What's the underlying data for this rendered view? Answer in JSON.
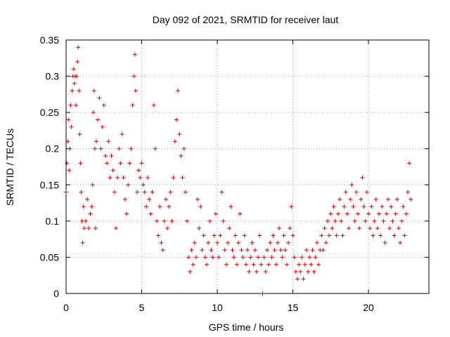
{
  "chart_data": {
    "type": "scatter",
    "title": "Day 092 of 2021, SRMTID for receiver laut",
    "xlabel": "GPS time / hours",
    "ylabel": "SRMTID / TECUs",
    "xlim": [
      0,
      24
    ],
    "ylim": [
      0,
      0.35
    ],
    "x_ticks": [
      0,
      5,
      10,
      15,
      20
    ],
    "y_ticks": [
      0,
      0.05,
      0.1,
      0.15,
      0.2,
      0.25,
      0.3,
      0.35
    ],
    "x_tick_labels": [
      "0",
      "5",
      "10",
      "15",
      "20"
    ],
    "y_tick_labels": [
      "0",
      "0.05",
      "0.1",
      "0.15",
      "0.2",
      "0.25",
      "0.3",
      "0.35"
    ],
    "grid": true,
    "marker": "+",
    "marker_color": "#e00000",
    "series": [
      {
        "points": [
          [
            0.0,
            0.14
          ],
          [
            0.05,
            0.18
          ],
          [
            0.1,
            0.21
          ],
          [
            0.15,
            0.24
          ],
          [
            0.2,
            0.17
          ],
          [
            0.25,
            0.2
          ],
          [
            0.3,
            0.26
          ],
          [
            0.35,
            0.23
          ],
          [
            0.4,
            0.28
          ],
          [
            0.45,
            0.3
          ],
          [
            0.5,
            0.31
          ],
          [
            0.55,
            0.29
          ],
          [
            0.6,
            0.3
          ],
          [
            0.65,
            0.26
          ],
          [
            0.7,
            0.3
          ],
          [
            0.75,
            0.32
          ],
          [
            0.8,
            0.34
          ],
          [
            0.85,
            0.28
          ],
          [
            0.9,
            0.22
          ],
          [
            0.95,
            0.18
          ],
          [
            1.0,
            0.14
          ],
          [
            1.05,
            0.1
          ],
          [
            1.1,
            0.07
          ],
          [
            1.15,
            0.12
          ],
          [
            1.2,
            0.09
          ],
          [
            1.3,
            0.1
          ],
          [
            1.4,
            0.13
          ],
          [
            1.5,
            0.09
          ],
          [
            1.6,
            0.11
          ],
          [
            1.7,
            0.12
          ],
          [
            1.75,
            0.15
          ],
          [
            1.8,
            0.25
          ],
          [
            1.85,
            0.28
          ],
          [
            1.9,
            0.2
          ],
          [
            1.95,
            0.09
          ],
          [
            2.0,
            0.21
          ],
          [
            2.1,
            0.24
          ],
          [
            2.2,
            0.27
          ],
          [
            2.3,
            0.2
          ],
          [
            2.4,
            0.23
          ],
          [
            2.5,
            0.26
          ],
          [
            2.6,
            0.19
          ],
          [
            2.7,
            0.18
          ],
          [
            2.8,
            0.21
          ],
          [
            2.9,
            0.16
          ],
          [
            3.0,
            0.19
          ],
          [
            3.1,
            0.17
          ],
          [
            3.2,
            0.14
          ],
          [
            3.3,
            0.09
          ],
          [
            3.4,
            0.16
          ],
          [
            3.5,
            0.2
          ],
          [
            3.6,
            0.18
          ],
          [
            3.7,
            0.22
          ],
          [
            3.8,
            0.16
          ],
          [
            3.9,
            0.13
          ],
          [
            4.0,
            0.11
          ],
          [
            4.1,
            0.15
          ],
          [
            4.2,
            0.18
          ],
          [
            4.3,
            0.2
          ],
          [
            4.4,
            0.26
          ],
          [
            4.5,
            0.3
          ],
          [
            4.55,
            0.33
          ],
          [
            4.6,
            0.28
          ],
          [
            4.7,
            0.14
          ],
          [
            4.8,
            0.17
          ],
          [
            4.9,
            0.16
          ],
          [
            5.0,
            0.18
          ],
          [
            5.1,
            0.15
          ],
          [
            5.2,
            0.14
          ],
          [
            5.3,
            0.12
          ],
          [
            5.4,
            0.16
          ],
          [
            5.5,
            0.13
          ],
          [
            5.6,
            0.11
          ],
          [
            5.7,
            0.14
          ],
          [
            5.8,
            0.26
          ],
          [
            5.9,
            0.2
          ],
          [
            6.0,
            0.1
          ],
          [
            6.1,
            0.08
          ],
          [
            6.2,
            0.12
          ],
          [
            6.3,
            0.07
          ],
          [
            6.4,
            0.06
          ],
          [
            6.5,
            0.1
          ],
          [
            6.6,
            0.13
          ],
          [
            6.7,
            0.09
          ],
          [
            6.8,
            0.12
          ],
          [
            6.9,
            0.14
          ],
          [
            7.0,
            0.1
          ],
          [
            7.1,
            0.16
          ],
          [
            7.2,
            0.21
          ],
          [
            7.3,
            0.24
          ],
          [
            7.4,
            0.28
          ],
          [
            7.5,
            0.22
          ],
          [
            7.6,
            0.19
          ],
          [
            7.7,
            0.16
          ],
          [
            7.8,
            0.2
          ],
          [
            7.9,
            0.14
          ],
          [
            8.0,
            0.1
          ],
          [
            8.1,
            0.05
          ],
          [
            8.2,
            0.03
          ],
          [
            8.3,
            0.06
          ],
          [
            8.4,
            0.04
          ],
          [
            8.5,
            0.07
          ],
          [
            8.6,
            0.05
          ],
          [
            8.7,
            0.13
          ],
          [
            8.8,
            0.09
          ],
          [
            8.9,
            0.12
          ],
          [
            9.0,
            0.06
          ],
          [
            9.1,
            0.08
          ],
          [
            9.2,
            0.05
          ],
          [
            9.3,
            0.04
          ],
          [
            9.4,
            0.07
          ],
          [
            9.5,
            0.1
          ],
          [
            9.6,
            0.06
          ],
          [
            9.7,
            0.05
          ],
          [
            9.8,
            0.08
          ],
          [
            9.9,
            0.11
          ],
          [
            10.0,
            0.07
          ],
          [
            10.1,
            0.05
          ],
          [
            10.2,
            0.08
          ],
          [
            10.3,
            0.14
          ],
          [
            10.4,
            0.1
          ],
          [
            10.5,
            0.06
          ],
          [
            10.6,
            0.04
          ],
          [
            10.7,
            0.07
          ],
          [
            10.8,
            0.09
          ],
          [
            10.9,
            0.12
          ],
          [
            11.0,
            0.06
          ],
          [
            11.1,
            0.05
          ],
          [
            11.2,
            0.08
          ],
          [
            11.3,
            0.04
          ],
          [
            11.4,
            0.07
          ],
          [
            11.5,
            0.11
          ],
          [
            11.6,
            0.06
          ],
          [
            11.7,
            0.05
          ],
          [
            11.8,
            0.08
          ],
          [
            11.9,
            0.04
          ],
          [
            12.0,
            0.06
          ],
          [
            12.1,
            0.03
          ],
          [
            12.2,
            0.05
          ],
          [
            12.3,
            0.07
          ],
          [
            12.4,
            0.04
          ],
          [
            12.5,
            0.06
          ],
          [
            12.6,
            0.03
          ],
          [
            12.7,
            0.05
          ],
          [
            12.8,
            0.08
          ],
          [
            12.9,
            0.04
          ],
          [
            13.0,
            0.0
          ],
          [
            13.1,
            0.05
          ],
          [
            13.2,
            0.03
          ],
          [
            13.3,
            0.06
          ],
          [
            13.4,
            0.04
          ],
          [
            13.5,
            0.07
          ],
          [
            13.6,
            0.05
          ],
          [
            13.7,
            0.08
          ],
          [
            13.8,
            0.06
          ],
          [
            13.9,
            0.04
          ],
          [
            14.0,
            0.07
          ],
          [
            14.1,
            0.09
          ],
          [
            14.2,
            0.06
          ],
          [
            14.3,
            0.05
          ],
          [
            14.4,
            0.08
          ],
          [
            14.5,
            0.06
          ],
          [
            14.6,
            0.04
          ],
          [
            14.7,
            0.07
          ],
          [
            14.8,
            0.09
          ],
          [
            14.9,
            0.12
          ],
          [
            15.0,
            0.08
          ],
          [
            15.1,
            0.05
          ],
          [
            15.2,
            0.03
          ],
          [
            15.3,
            0.02
          ],
          [
            15.4,
            0.04
          ],
          [
            15.5,
            0.03
          ],
          [
            15.6,
            0.05
          ],
          [
            15.7,
            0.02
          ],
          [
            15.8,
            0.04
          ],
          [
            15.9,
            0.06
          ],
          [
            16.0,
            0.03
          ],
          [
            16.1,
            0.05
          ],
          [
            16.2,
            0.04
          ],
          [
            16.3,
            0.06
          ],
          [
            16.4,
            0.03
          ],
          [
            16.5,
            0.05
          ],
          [
            16.6,
            0.07
          ],
          [
            16.7,
            0.04
          ],
          [
            16.8,
            0.06
          ],
          [
            16.9,
            0.08
          ],
          [
            17.0,
            0.06
          ],
          [
            17.1,
            0.09
          ],
          [
            17.2,
            0.07
          ],
          [
            17.3,
            0.1
          ],
          [
            17.4,
            0.08
          ],
          [
            17.5,
            0.11
          ],
          [
            17.6,
            0.09
          ],
          [
            17.7,
            0.12
          ],
          [
            17.8,
            0.1
          ],
          [
            17.9,
            0.08
          ],
          [
            18.0,
            0.11
          ],
          [
            18.1,
            0.13
          ],
          [
            18.2,
            0.1
          ],
          [
            18.3,
            0.08
          ],
          [
            18.4,
            0.12
          ],
          [
            18.5,
            0.14
          ],
          [
            18.6,
            0.11
          ],
          [
            18.7,
            0.09
          ],
          [
            18.8,
            0.13
          ],
          [
            18.9,
            0.15
          ],
          [
            19.0,
            0.12
          ],
          [
            19.1,
            0.1
          ],
          [
            19.2,
            0.14
          ],
          [
            19.3,
            0.11
          ],
          [
            19.4,
            0.09
          ],
          [
            19.5,
            0.13
          ],
          [
            19.6,
            0.16
          ],
          [
            19.7,
            0.12
          ],
          [
            19.8,
            0.1
          ],
          [
            19.9,
            0.14
          ],
          [
            20.0,
            0.11
          ],
          [
            20.1,
            0.09
          ],
          [
            20.2,
            0.12
          ],
          [
            20.3,
            0.08
          ],
          [
            20.4,
            0.1
          ],
          [
            20.5,
            0.13
          ],
          [
            20.6,
            0.09
          ],
          [
            20.7,
            0.11
          ],
          [
            20.8,
            0.08
          ],
          [
            20.9,
            0.12
          ],
          [
            21.0,
            0.1
          ],
          [
            21.1,
            0.07
          ],
          [
            21.2,
            0.11
          ],
          [
            21.3,
            0.13
          ],
          [
            21.4,
            0.09
          ],
          [
            21.5,
            0.12
          ],
          [
            21.6,
            0.1
          ],
          [
            21.7,
            0.08
          ],
          [
            21.8,
            0.11
          ],
          [
            21.9,
            0.13
          ],
          [
            22.0,
            0.09
          ],
          [
            22.1,
            0.07
          ],
          [
            22.2,
            0.1
          ],
          [
            22.3,
            0.12
          ],
          [
            22.4,
            0.08
          ],
          [
            22.5,
            0.11
          ],
          [
            22.6,
            0.14
          ],
          [
            22.7,
            0.18
          ],
          [
            22.8,
            0.13
          ]
        ]
      }
    ]
  }
}
